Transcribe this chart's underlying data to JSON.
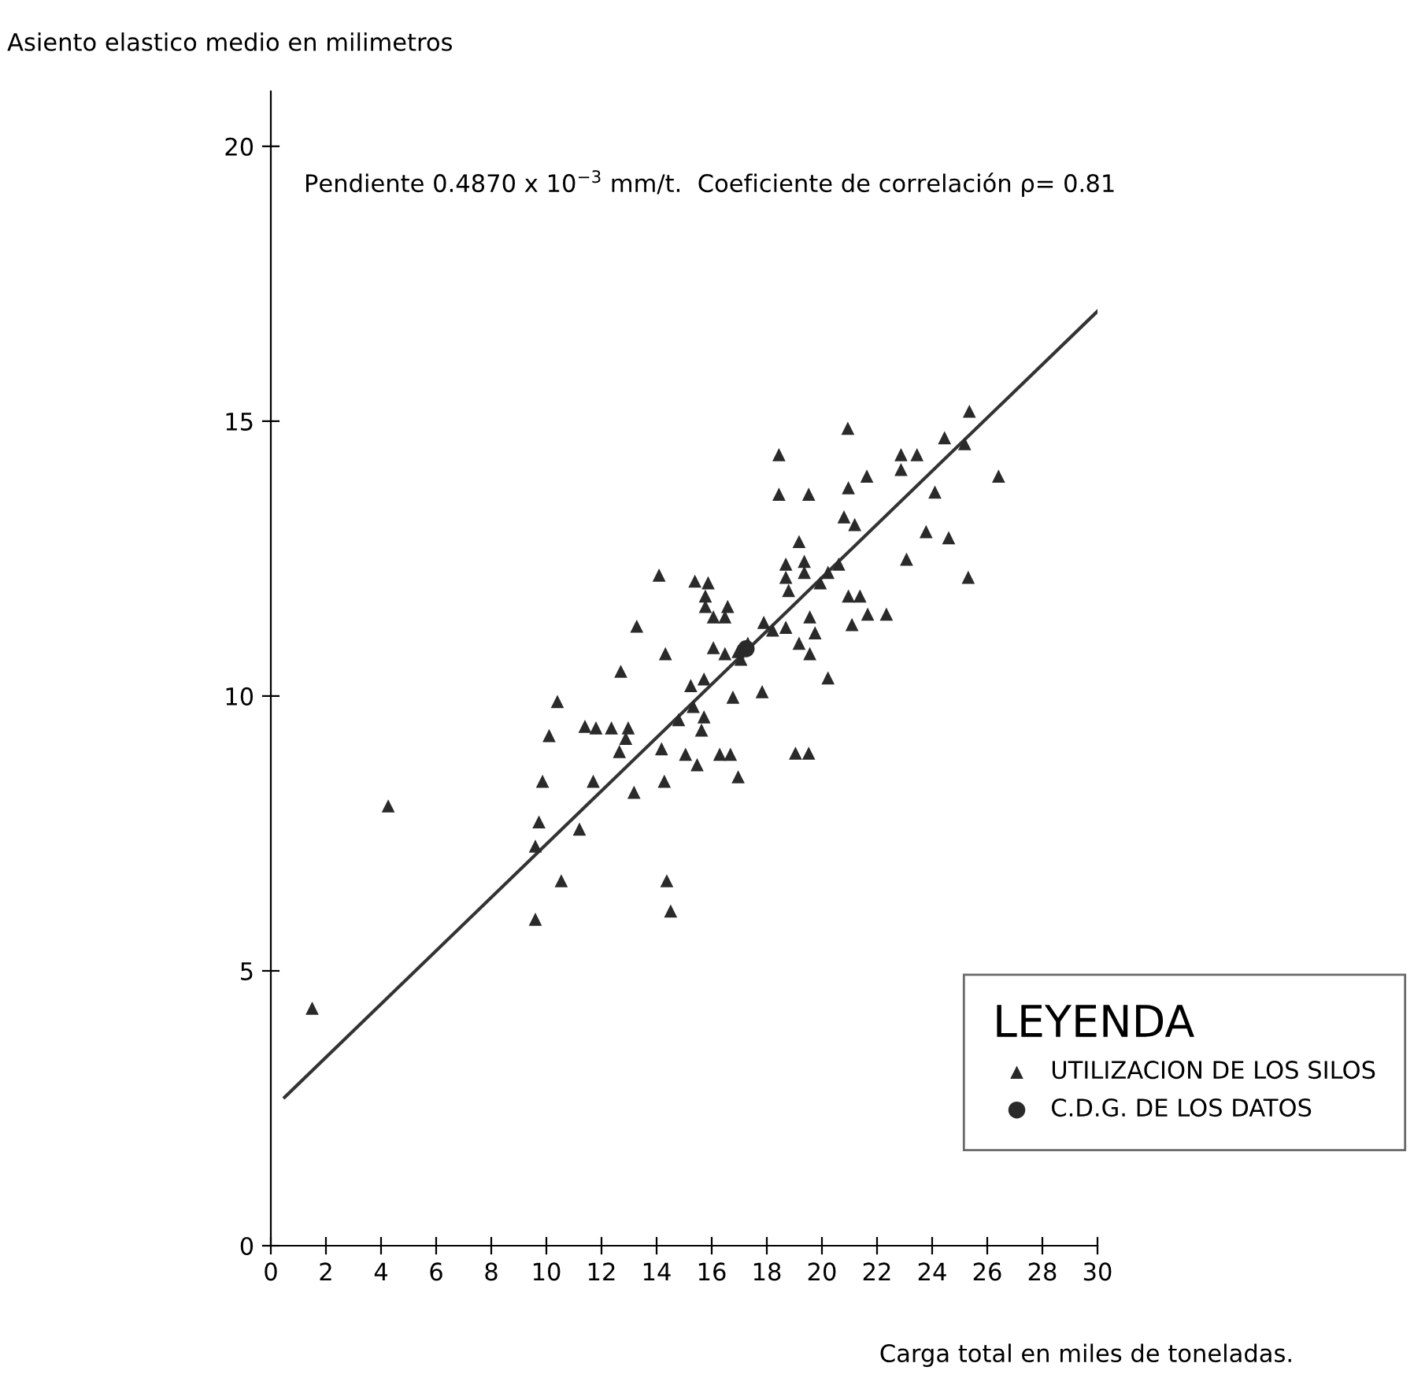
{
  "chart_data": {
    "type": "scatter",
    "xlabel": "Carga total en miles de toneladas.",
    "ylabel": "Asiento elastico medio en milimetros",
    "legend_title": "LEYENDA",
    "legend": "bottom right",
    "grid": false,
    "annotations": [
      "Pendiente 0.4870 x 10$^{−3}$ mm/t.  Coeficiente de correlación ρ= 0.81"
    ],
    "xlim": [
      0,
      30
    ],
    "ylim": [
      0,
      21
    ],
    "xticks": [
      0,
      2,
      4,
      6,
      8,
      10,
      12,
      14,
      16,
      18,
      20,
      22,
      24,
      26,
      28,
      30
    ],
    "yticks": [
      0,
      5,
      10,
      15,
      20
    ],
    "series": [
      {
        "name": "UTILIZACION DE LOS SILOS",
        "marker": "triangle",
        "color": "#2a2a2a",
        "x": [
          1.5,
          4.26,
          10.4,
          10.1,
          9.86,
          9.73,
          9.6,
          10.54,
          9.6,
          11.2,
          11.7,
          11.4,
          11.8,
          12.36,
          12.97,
          12.88,
          12.65,
          18.44,
          18.44,
          19.52,
          19.17,
          18.69,
          19.36,
          18.69,
          19.36,
          18.79,
          14.09,
          15.39,
          15.87,
          15.77,
          15.77,
          16.06,
          16.58,
          16.48,
          13.28,
          14.32,
          12.7,
          16.06,
          16.48,
          16.96,
          17.31,
          17.06,
          17.89,
          18.21,
          18.69,
          19.56,
          19.75,
          19.17,
          19.56,
          15.24,
          15.72,
          16.77,
          17.83,
          14.8,
          15.33,
          15.72,
          15.63,
          14.18,
          15.05,
          15.47,
          16.29,
          16.68,
          16.96,
          14.28,
          13.18,
          14.37,
          14.51,
          19.04,
          19.52,
          25.35,
          20.94,
          22.87,
          23.45,
          22.87,
          24.45,
          25.18,
          26.41,
          20.96,
          21.63,
          24.1,
          20.8,
          21.19,
          23.78,
          24.6,
          23.07,
          25.31,
          20.61,
          20.22,
          19.94,
          20.96,
          21.38,
          21.66,
          22.34,
          21.09,
          20.22
        ],
        "values": [
          4.32,
          8.0,
          9.9,
          9.28,
          8.45,
          7.71,
          7.27,
          6.64,
          5.94,
          7.58,
          8.45,
          9.45,
          9.42,
          9.42,
          9.42,
          9.23,
          8.99,
          14.39,
          13.67,
          13.67,
          12.81,
          12.4,
          12.45,
          12.16,
          12.25,
          11.92,
          12.2,
          12.09,
          12.06,
          11.82,
          11.63,
          11.44,
          11.63,
          11.44,
          11.27,
          10.77,
          10.45,
          10.88,
          10.77,
          10.81,
          10.96,
          10.67,
          11.34,
          11.2,
          11.25,
          11.44,
          11.15,
          10.96,
          10.77,
          10.19,
          10.31,
          9.98,
          10.08,
          9.57,
          9.81,
          9.62,
          9.38,
          9.04,
          8.94,
          8.75,
          8.94,
          8.94,
          8.53,
          8.45,
          8.25,
          6.64,
          6.09,
          8.96,
          8.96,
          15.18,
          14.87,
          14.39,
          14.39,
          14.12,
          14.7,
          14.59,
          14.0,
          13.79,
          14.0,
          13.71,
          13.26,
          13.12,
          12.99,
          12.88,
          12.49,
          12.16,
          12.4,
          12.25,
          12.06,
          11.82,
          11.82,
          11.49,
          11.49,
          11.3,
          10.33
        ]
      },
      {
        "name": "C.D.G. DE LOS DATOS",
        "marker": "circle",
        "color": "#2a2a2a",
        "x": [
          17.25
        ],
        "values": [
          10.86
        ]
      },
      {
        "type": "line",
        "color": "#333333",
        "line_style": "solid",
        "x": [
          0.5,
          30
        ],
        "values": [
          2.7,
          17.0
        ]
      }
    ]
  }
}
